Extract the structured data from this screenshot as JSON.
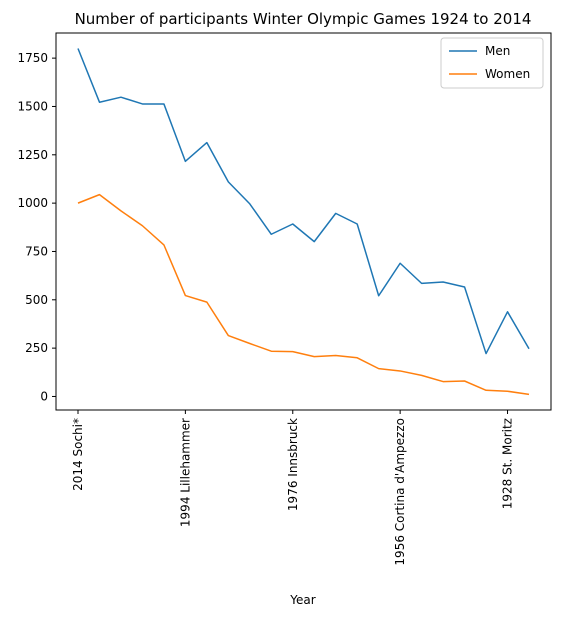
{
  "chart_data": {
    "type": "line",
    "title": "Number of participants Winter Olympic Games 1924 to 2014",
    "xlabel": "Year",
    "ylabel": "",
    "ylim": [
      -70,
      1880
    ],
    "yticks": [
      0,
      250,
      500,
      750,
      1000,
      1250,
      1500,
      1750
    ],
    "xticks": [
      {
        "index": 0,
        "label": "2014 Sochi*"
      },
      {
        "index": 5,
        "label": "1994 Lillehammer"
      },
      {
        "index": 10,
        "label": "1976 Innsbruck"
      },
      {
        "index": 15,
        "label": "1956 Cortina d'Ampezzo"
      },
      {
        "index": 20,
        "label": "1928 St. Moritz"
      }
    ],
    "x_count": 22,
    "grid": false,
    "legend_position": "top-right",
    "series": [
      {
        "name": "Men",
        "color": "#1f77b4",
        "values": [
          1800,
          1522,
          1548,
          1513,
          1513,
          1216,
          1313,
          1110,
          996,
          839,
          892,
          801,
          947,
          892,
          521,
          689,
          585,
          592,
          566,
          222,
          438,
          247
        ]
      },
      {
        "name": "Women",
        "color": "#ff7f0e",
        "values": [
          1000,
          1044,
          960,
          883,
          784,
          522,
          488,
          315,
          274,
          234,
          232,
          206,
          212,
          200,
          144,
          132,
          109,
          77,
          80,
          32,
          27,
          11
        ]
      }
    ]
  }
}
